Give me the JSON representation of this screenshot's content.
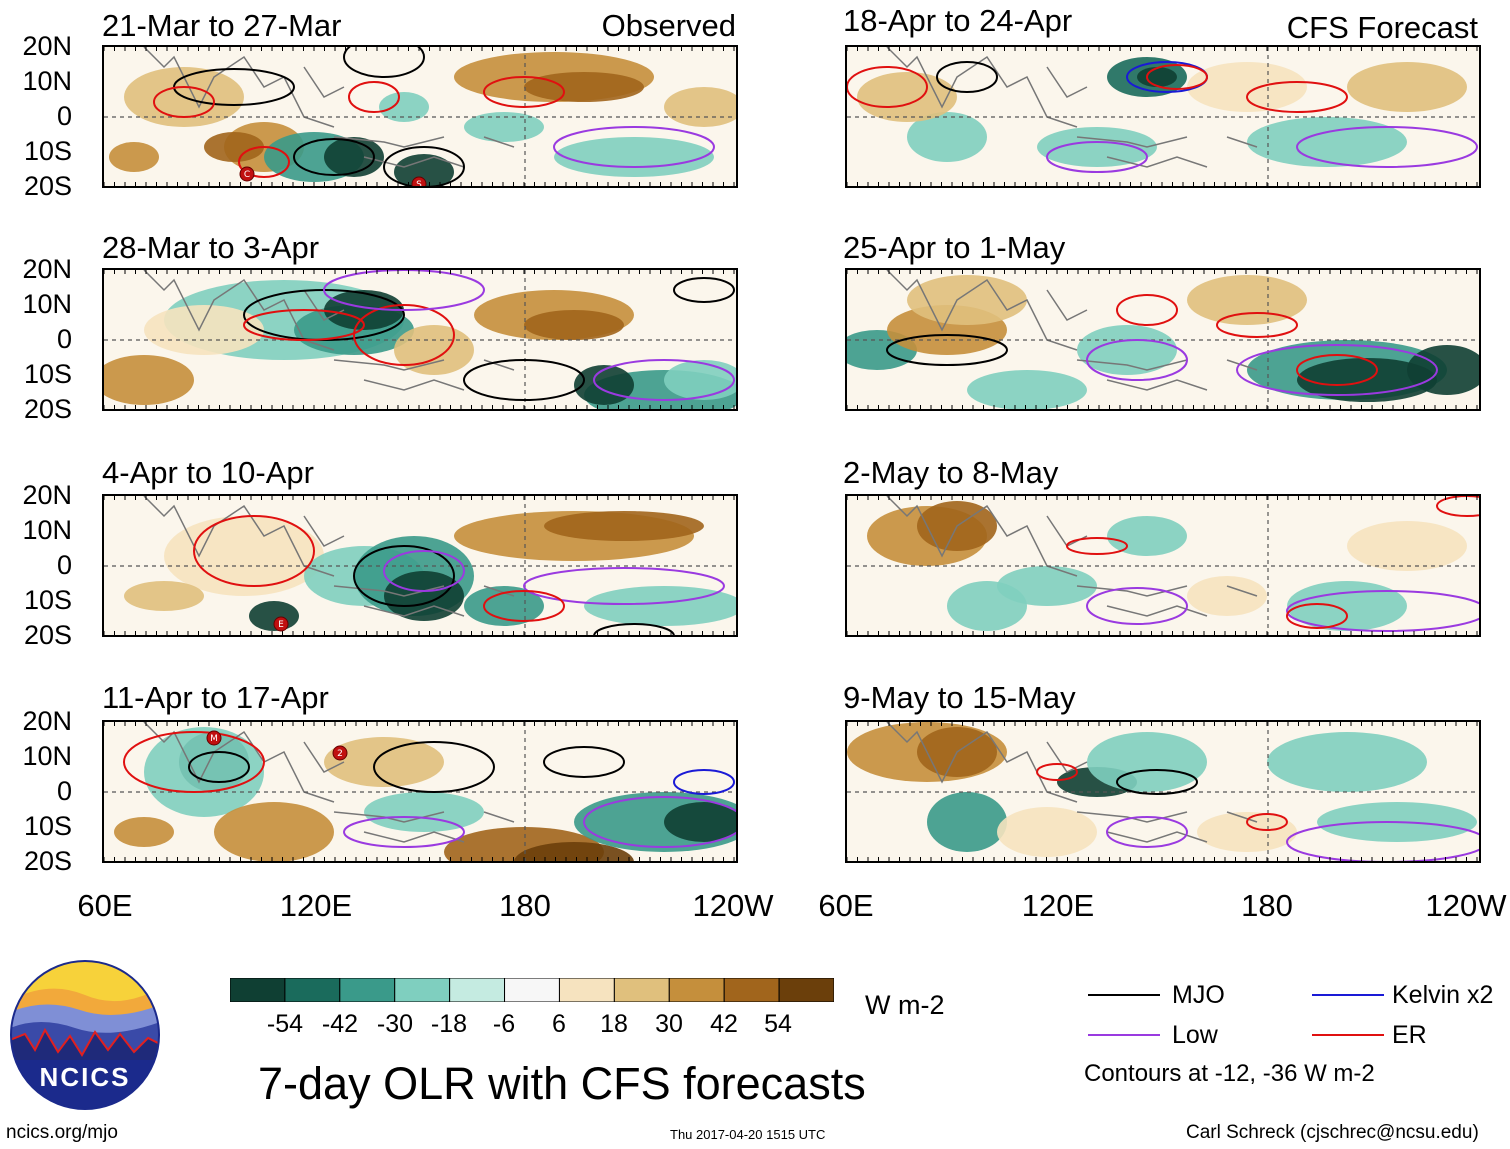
{
  "figure_title": "7-day OLR with CFS forecasts",
  "observed_tag": "Observed",
  "forecast_tag": "CFS Forecast",
  "observed_panels": [
    {
      "title": "21-Mar to 27-Mar"
    },
    {
      "title": "28-Mar to 3-Apr"
    },
    {
      "title": "4-Apr to 10-Apr"
    },
    {
      "title": "11-Apr to 17-Apr"
    }
  ],
  "forecast_panels": [
    {
      "title": "18-Apr to 24-Apr"
    },
    {
      "title": "25-Apr to 1-May"
    },
    {
      "title": "2-May to 8-May"
    },
    {
      "title": "9-May to 15-May"
    }
  ],
  "lat_labels": [
    "20N",
    "10N",
    "0",
    "10S",
    "20S"
  ],
  "lon_labels": [
    "60E",
    "120E",
    "180",
    "120W"
  ],
  "storm_markers": {
    "observed_1": [
      "C",
      "S"
    ],
    "observed_3": [
      "E"
    ],
    "observed_4": [
      "M",
      "2"
    ]
  },
  "colorbar": {
    "unit": "W m-2",
    "labels": [
      "-54",
      "-42",
      "-30",
      "-18",
      "-6",
      "6",
      "18",
      "30",
      "42",
      "54"
    ],
    "colors": [
      "#0f3f33",
      "#1a6b5c",
      "#3a9a8a",
      "#7fcfbf",
      "#c5ebe1",
      "#f7f7f7",
      "#f6e3bf",
      "#e0c07d",
      "#c58f3c",
      "#a1651c",
      "#6b3f0b"
    ]
  },
  "legend": {
    "items": [
      {
        "label": "MJO",
        "color": "#000000"
      },
      {
        "label": "Kelvin x2",
        "color": "#1a1ad6"
      },
      {
        "label": "Low",
        "color": "#9a3ae0"
      },
      {
        "label": "ER",
        "color": "#e01010"
      }
    ],
    "note": "Contours at -12, -36 W m-2"
  },
  "logo": {
    "text": "NCICS"
  },
  "footer": {
    "url": "ncics.org/mjo",
    "timestamp": "Thu 2017-04-20 1515 UTC",
    "credit": "Carl Schreck (cjschrec@ncsu.edu)"
  }
}
